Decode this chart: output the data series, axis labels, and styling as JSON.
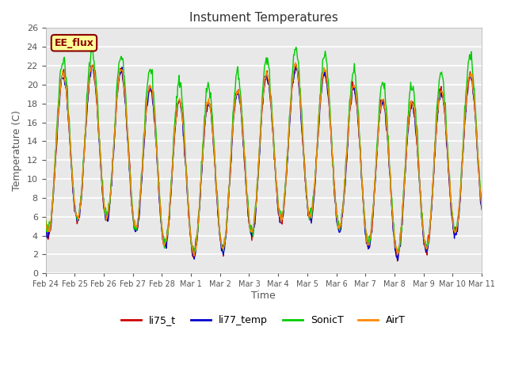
{
  "title": "Instument Temperatures",
  "xlabel": "Time",
  "ylabel": "Temperature (C)",
  "ylim": [
    0,
    26
  ],
  "annotation_text": "EE_flux",
  "annotation_bg": "#FFFF99",
  "annotation_border": "#8B0000",
  "line_colors": {
    "li75_t": "#CC0000",
    "li77_temp": "#0000CC",
    "SonicT": "#00CC00",
    "AirT": "#FF8800"
  },
  "legend_labels": [
    "li75_t",
    "li77_temp",
    "SonicT",
    "AirT"
  ],
  "xtick_labels": [
    "Feb 24",
    "Feb 25",
    "Feb 26",
    "Feb 27",
    "Feb 28",
    "Mar 1",
    "Mar 2",
    "Mar 3",
    "Mar 4",
    "Mar 5",
    "Mar 6",
    "Mar 7",
    "Mar 8",
    "Mar 9",
    "Mar 10",
    "Mar 11"
  ],
  "n_days": 15,
  "pts_per_day": 48,
  "bg_color": "#FFFFFF",
  "plot_bg": "#E8E8E8",
  "band_color": "#DCDCDC",
  "grid_color": "#CCCCCC"
}
